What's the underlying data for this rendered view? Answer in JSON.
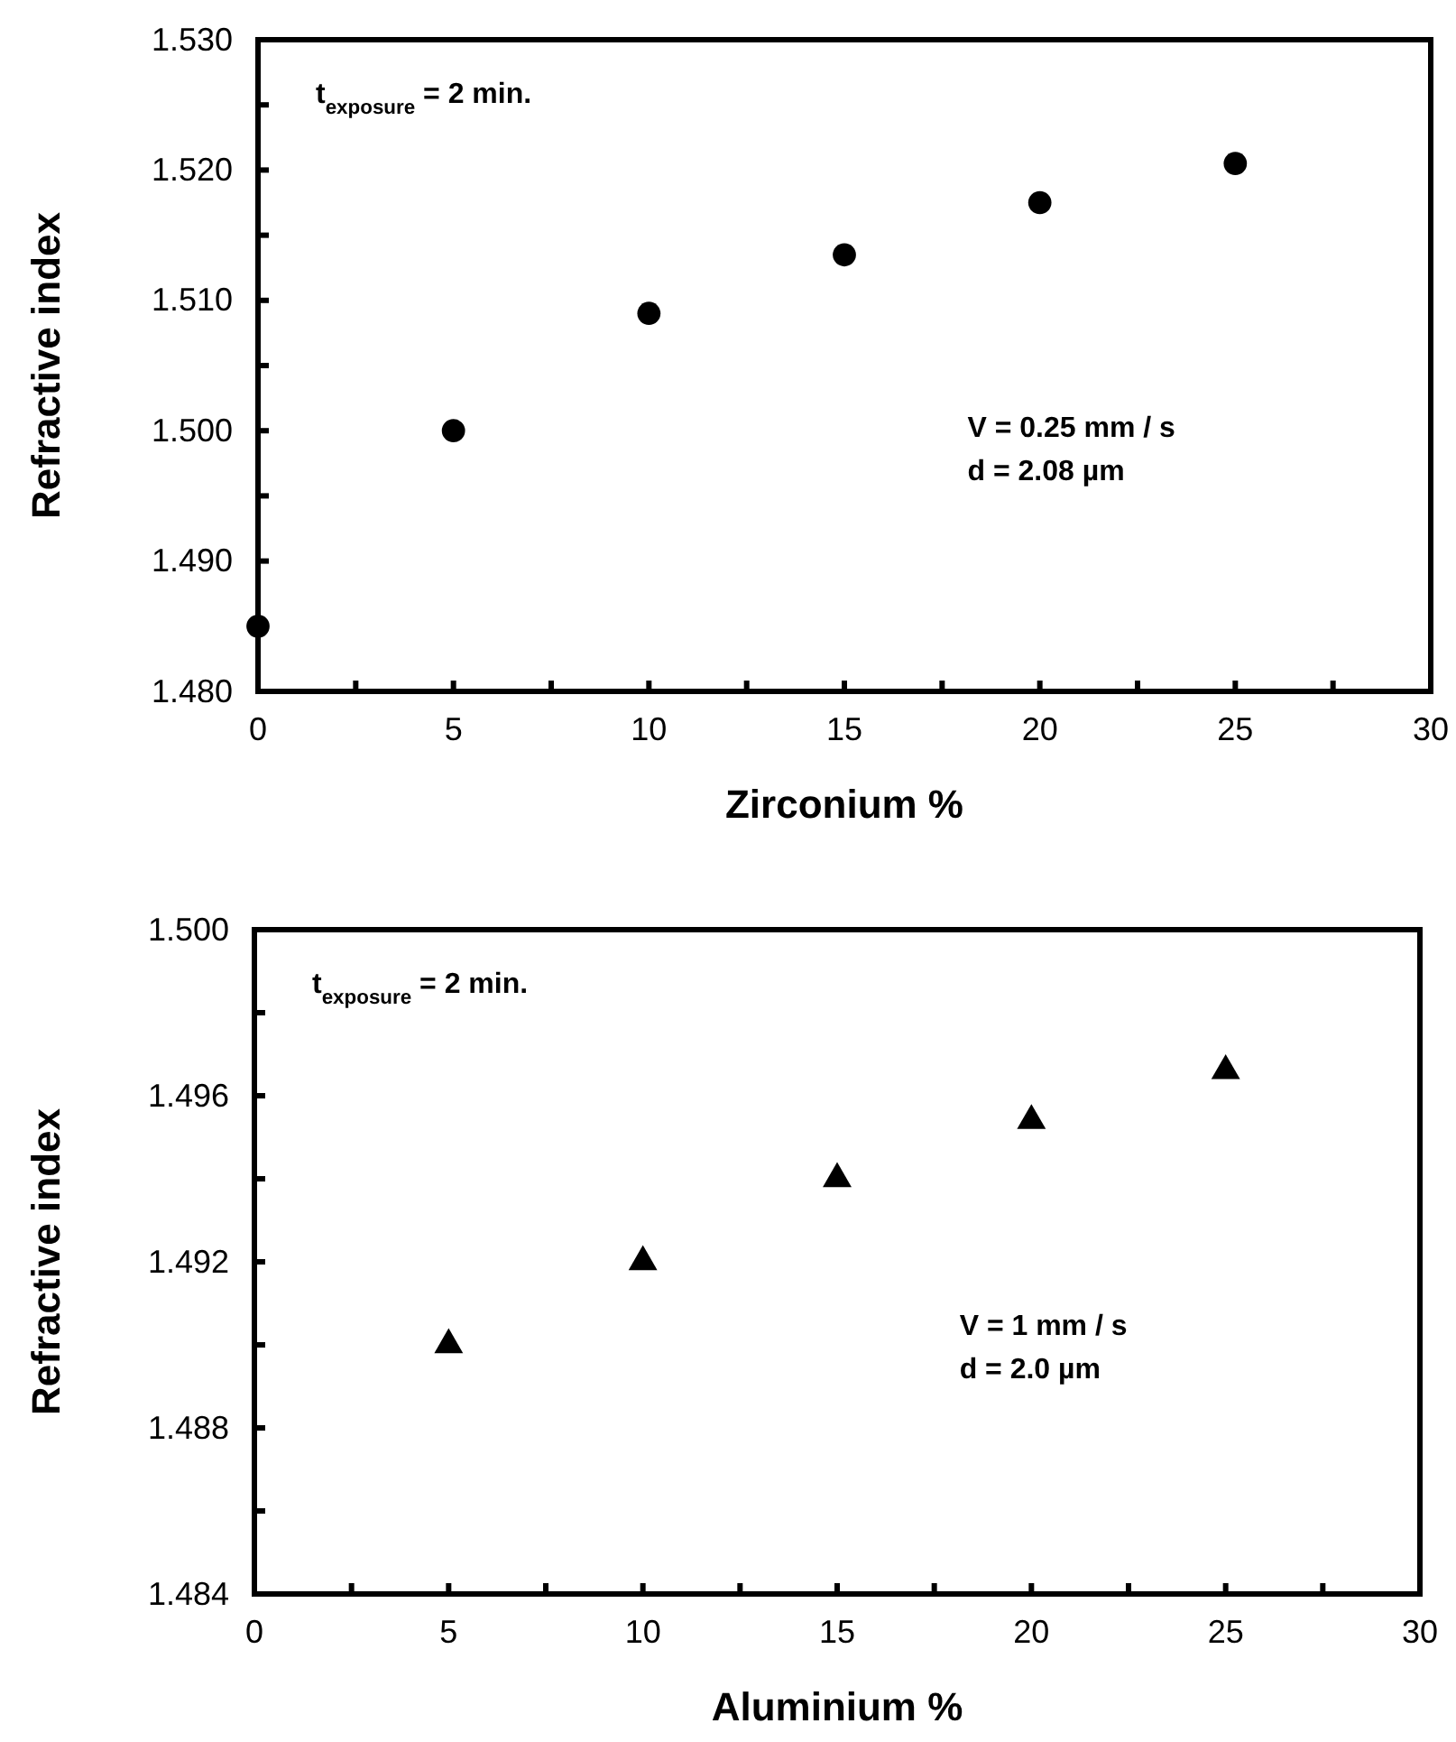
{
  "chart_data": [
    {
      "type": "scatter",
      "xlabel": "Zirconium %",
      "ylabel": "Refractive index",
      "marker": "circle",
      "grid": false,
      "x": [
        0,
        5,
        10,
        15,
        20,
        25
      ],
      "series": [
        {
          "color": "#000000",
          "values": [
            1.485,
            1.5,
            1.509,
            1.5135,
            1.5175,
            1.5205
          ]
        }
      ],
      "xlim": [
        0,
        30
      ],
      "xticks": [
        0,
        {
          "value": 2.5,
          "label": null
        },
        5,
        {
          "value": 7.5,
          "label": null
        },
        10,
        {
          "value": 12.5,
          "label": null
        },
        15,
        {
          "value": 17.5,
          "label": null
        },
        20,
        {
          "value": 22.5,
          "label": null
        },
        25,
        {
          "value": 27.5,
          "label": null
        },
        30
      ],
      "ylim": [
        1.48,
        1.53
      ],
      "yticks": [
        {
          "value": 1.48,
          "label": "1.480"
        },
        {
          "value": 1.485,
          "label": null
        },
        {
          "value": 1.49,
          "label": "1.490"
        },
        {
          "value": 1.495,
          "label": null
        },
        {
          "value": 1.5,
          "label": "1.500"
        },
        {
          "value": 1.505,
          "label": null
        },
        {
          "value": 1.51,
          "label": "1.510"
        },
        {
          "value": 1.515,
          "label": null
        },
        {
          "value": 1.52,
          "label": "1.520"
        },
        {
          "value": 1.525,
          "label": null
        },
        {
          "value": 1.53,
          "label": "1.530"
        }
      ],
      "annotations": [
        "t$_{exposure}$ = 2 min.",
        "V = 0.25 mm / s",
        "d = 2.08 µm"
      ]
    },
    {
      "type": "scatter",
      "xlabel": "Aluminium %",
      "ylabel": "Refractive index",
      "marker": "triangle",
      "grid": false,
      "x": [
        5,
        10,
        15,
        20,
        25
      ],
      "series": [
        {
          "color": "#000000",
          "values": [
            1.49,
            1.492,
            1.494,
            1.4954,
            1.4966
          ]
        }
      ],
      "xlim": [
        0,
        30
      ],
      "xticks": [
        0,
        {
          "value": 2.5,
          "label": null
        },
        5,
        {
          "value": 7.5,
          "label": null
        },
        10,
        {
          "value": 12.5,
          "label": null
        },
        15,
        {
          "value": 17.5,
          "label": null
        },
        20,
        {
          "value": 22.5,
          "label": null
        },
        25,
        {
          "value": 27.5,
          "label": null
        },
        30
      ],
      "ylim": [
        1.484,
        1.5
      ],
      "yticks": [
        1.484,
        {
          "value": 1.486,
          "label": null
        },
        1.488,
        {
          "value": 1.49,
          "label": null
        },
        1.492,
        {
          "value": 1.494,
          "label": null
        },
        1.496,
        {
          "value": 1.498,
          "label": null
        },
        {
          "value": 1.5,
          "label": "1.500"
        }
      ],
      "annotations": [
        "t$_{exposure}$ = 2 min.",
        "V = 1 mm / s",
        "d = 2.0 µm"
      ]
    }
  ]
}
